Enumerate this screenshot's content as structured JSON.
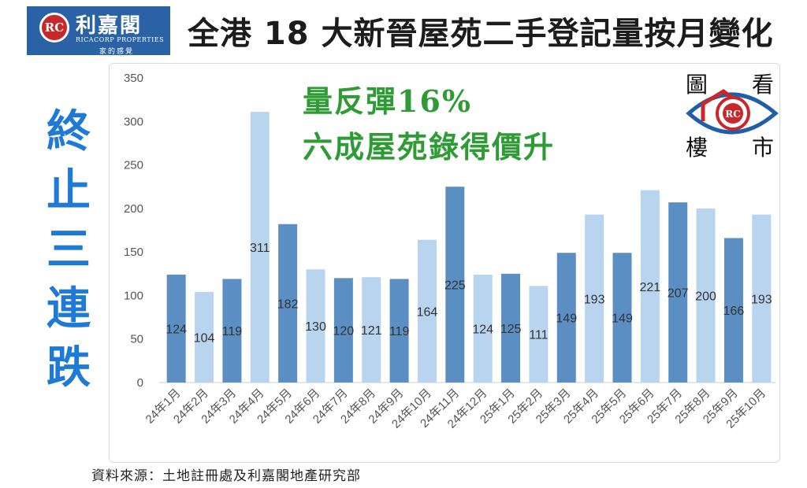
{
  "brand": {
    "mark": "RC",
    "name": "利嘉閣",
    "english": "RICACORP PROPERTIES",
    "tagline": "家的感覺"
  },
  "title": "全港 18 大新晉屋苑二手登記量按月變化",
  "side_text": [
    "終",
    "止",
    "三",
    "連",
    "跌"
  ],
  "annotations": [
    "量反彈16%",
    "六成屋苑錄得價升"
  ],
  "badge": {
    "chars": [
      "圖",
      "看",
      "樓",
      "市"
    ],
    "mark": "RC"
  },
  "source": "資料來源：土地註冊處及利嘉閣地產研究部",
  "colors": {
    "dark": "#5b8fc3",
    "light": "#b9d4ee",
    "accent_green": "#2e9b35",
    "side_blue": "#1f7ad6"
  },
  "chart_data": {
    "type": "bar",
    "categories": [
      "24年1月",
      "24年2月",
      "24年3月",
      "24年4月",
      "24年5月",
      "24年6月",
      "24年7月",
      "24年8月",
      "24年9月",
      "24年10月",
      "24年11月",
      "24年12月",
      "25年1月",
      "25年2月",
      "25年3月",
      "25年4月",
      "25年5月",
      "25年6月",
      "25年7月",
      "25年8月",
      "25年9月",
      "25年10月"
    ],
    "values": [
      124,
      104,
      119,
      311,
      182,
      130,
      120,
      121,
      119,
      164,
      225,
      124,
      125,
      111,
      149,
      193,
      149,
      221,
      207,
      200,
      166,
      193
    ],
    "shades": [
      "dark",
      "light",
      "dark",
      "light",
      "dark",
      "light",
      "dark",
      "light",
      "dark",
      "light",
      "dark",
      "light",
      "dark",
      "light",
      "dark",
      "light",
      "dark",
      "light",
      "dark",
      "light",
      "dark",
      "light"
    ],
    "ylim": [
      0,
      350
    ],
    "yticks": [
      0,
      50,
      100,
      150,
      200,
      250,
      300,
      350
    ],
    "grid": false,
    "legend": "none"
  }
}
